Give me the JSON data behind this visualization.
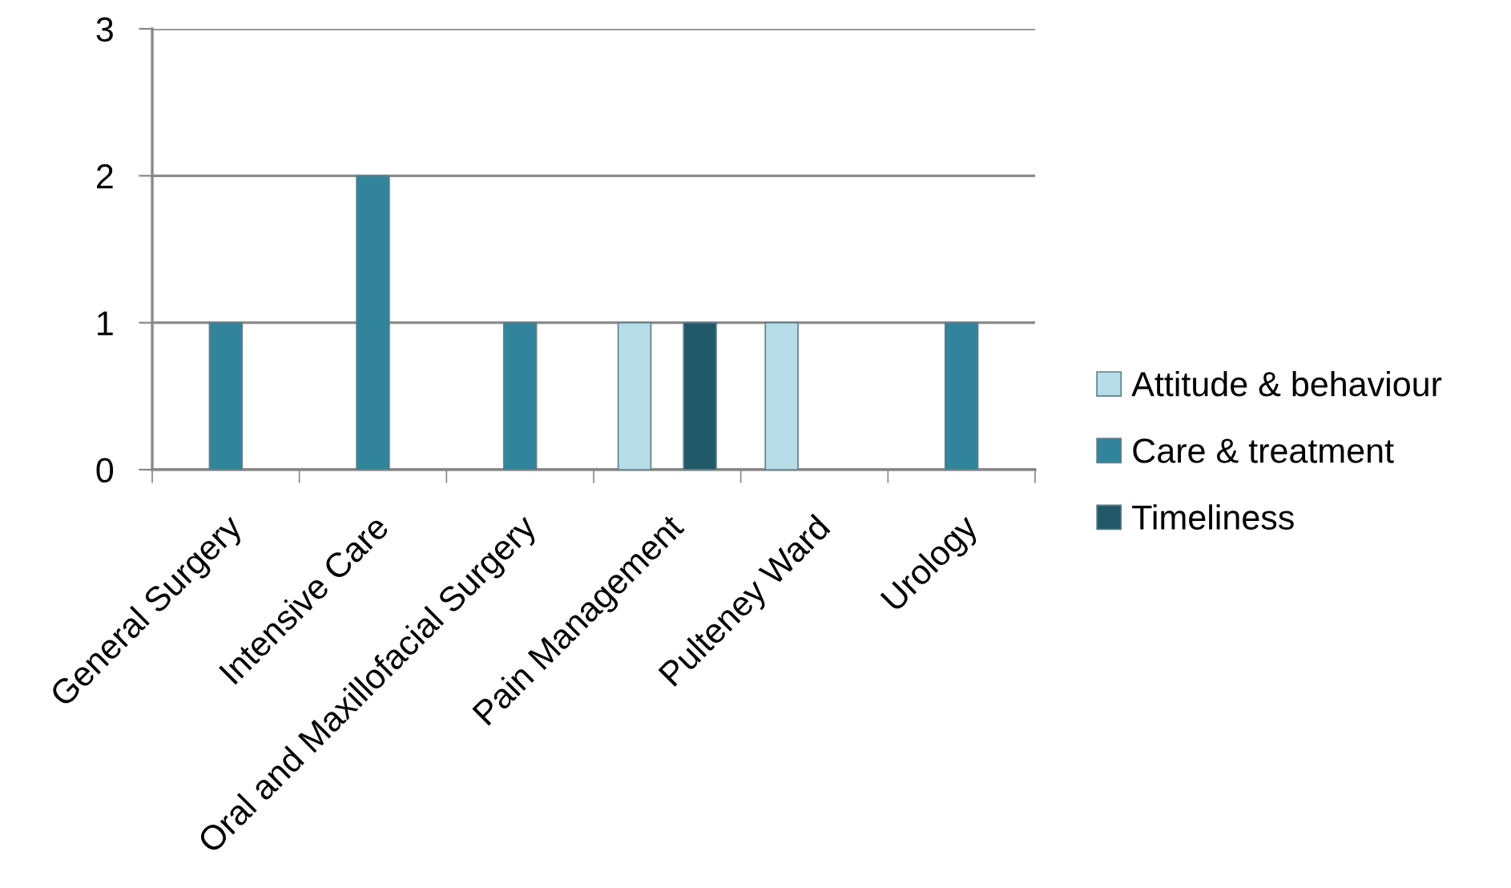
{
  "chart_data": {
    "type": "bar",
    "categories": [
      "General Surgery",
      "Intensive Care",
      "Oral and Maxillofacial Surgery",
      "Pain Management",
      "Pulteney Ward",
      "Urology"
    ],
    "series": [
      {
        "name": "Attitude & behaviour",
        "color": "#b7dde8",
        "values": [
          null,
          null,
          null,
          1,
          1,
          null
        ]
      },
      {
        "name": "Care & treatment",
        "color": "#31849b",
        "values": [
          1,
          2,
          1,
          null,
          null,
          1
        ]
      },
      {
        "name": "Timeliness",
        "color": "#215968",
        "values": [
          null,
          null,
          null,
          1,
          null,
          null
        ]
      }
    ],
    "ylim": [
      0,
      3
    ],
    "yticks": [
      0,
      1,
      2,
      3
    ],
    "grid": "y",
    "legend": "right"
  }
}
